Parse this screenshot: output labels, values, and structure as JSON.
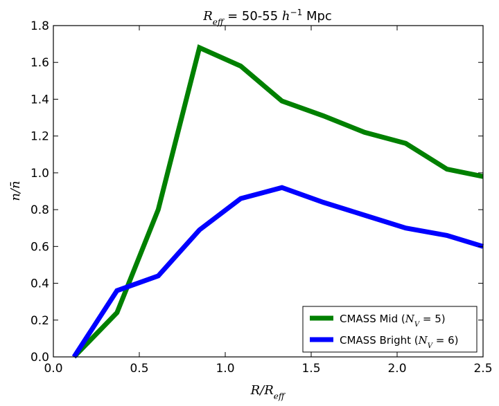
{
  "chart_data": {
    "type": "line",
    "title": {
      "math": "R",
      "sub": "eff",
      "text": " = 50-55 ",
      "unit_math": "h",
      "unit_sup": "−1",
      "unit_text": " Mpc"
    },
    "xlabel": "R/R_eff",
    "ylabel": "n/n̄",
    "xlim": [
      0.0,
      2.5
    ],
    "ylim": [
      0.0,
      1.8
    ],
    "xticks": [
      0.0,
      0.5,
      1.0,
      1.5,
      2.0,
      2.5
    ],
    "xtick_labels": [
      "0.0",
      "0.5",
      "1.0",
      "1.5",
      "2.0",
      "2.5"
    ],
    "yticks": [
      0.0,
      0.2,
      0.4,
      0.6,
      0.8,
      1.0,
      1.2,
      1.4,
      1.6,
      1.8
    ],
    "ytick_labels": [
      "0.0",
      "0.2",
      "0.4",
      "0.6",
      "0.8",
      "1.0",
      "1.2",
      "1.4",
      "1.6",
      "1.8"
    ],
    "grid": false,
    "legend_position": "lower-right",
    "series": [
      {
        "name": "CMASS Mid",
        "legend_prefix": "CMASS Mid (",
        "legend_math": "N",
        "legend_sub": "V",
        "legend_suffix": " = 5)",
        "color": "#008000",
        "x": [
          0.12,
          0.37,
          0.61,
          0.85,
          1.09,
          1.33,
          1.57,
          1.81,
          2.05,
          2.29,
          2.5
        ],
        "y": [
          0.0,
          0.24,
          0.8,
          1.68,
          1.58,
          1.39,
          1.31,
          1.22,
          1.16,
          1.02,
          0.98
        ]
      },
      {
        "name": "CMASS Bright",
        "legend_prefix": "CMASS Bright (",
        "legend_math": "N",
        "legend_sub": "V",
        "legend_suffix": " = 6)",
        "color": "#0000ff",
        "x": [
          0.12,
          0.37,
          0.61,
          0.85,
          1.09,
          1.33,
          1.57,
          1.81,
          2.05,
          2.29,
          2.5
        ],
        "y": [
          0.0,
          0.36,
          0.44,
          0.69,
          0.86,
          0.92,
          0.84,
          0.77,
          0.7,
          0.66,
          0.6
        ]
      }
    ]
  }
}
